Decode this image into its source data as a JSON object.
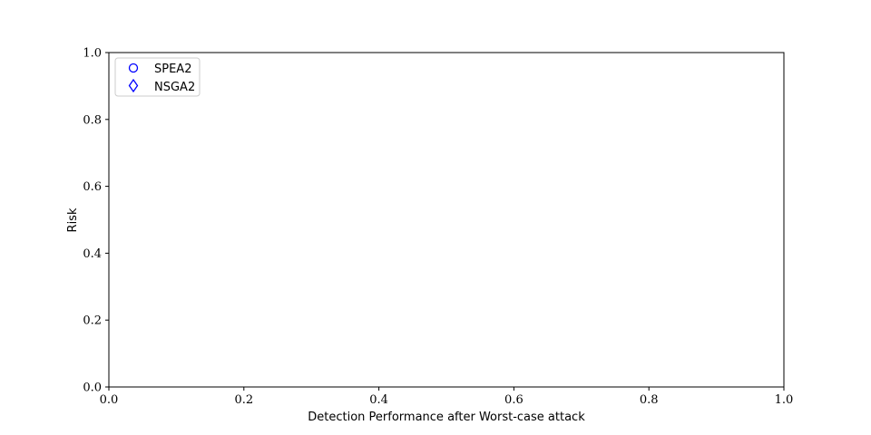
{
  "chart_data": {
    "type": "scatter",
    "title": "",
    "xlabel": "Detection Performance after Worst-case attack",
    "ylabel": "Risk",
    "xlim": [
      0.0,
      1.0
    ],
    "ylim": [
      0.0,
      1.0
    ],
    "xticks": [
      "0.0",
      "0.2",
      "0.4",
      "0.6",
      "0.8",
      "1.0"
    ],
    "yticks": [
      "0.0",
      "0.2",
      "0.4",
      "0.6",
      "0.8",
      "1.0"
    ],
    "grid": false,
    "legend_position": "top-left",
    "series": [
      {
        "name": "SPEA2",
        "marker": "circle",
        "color": "#0000ff",
        "points": []
      },
      {
        "name": "NSGA2",
        "marker": "diamond",
        "color": "#0000ff",
        "points": []
      }
    ]
  }
}
